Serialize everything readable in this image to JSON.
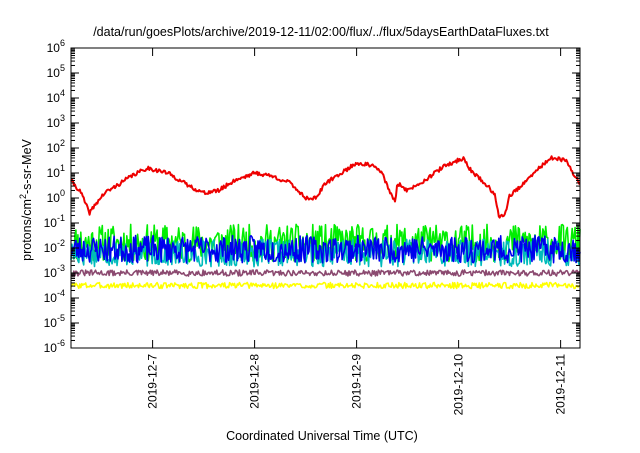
{
  "chart_data": {
    "type": "line",
    "title": "/data/run/goesPlots/archive/2019-12-11/02:00/flux/../flux/5daysEarthDataFluxes.txt",
    "xlabel": "Coordinated Universal Time (UTC)",
    "ylabel": {
      "pre": "protons/cm",
      "sup": "2",
      "post": "-s-sr-MeV"
    },
    "xticks": [
      {
        "label": "2019-12-7",
        "t": 0.8
      },
      {
        "label": "2019-12-8",
        "t": 1.8
      },
      {
        "label": "2019-12-9",
        "t": 2.8
      },
      {
        "label": "2019-12-10",
        "t": 3.8
      },
      {
        "label": "2019-12-11",
        "t": 4.8
      }
    ],
    "yticks": [
      {
        "base": "10",
        "exp": "-6",
        "v": -6
      },
      {
        "base": "10",
        "exp": "-5",
        "v": -5
      },
      {
        "base": "10",
        "exp": "-4",
        "v": -4
      },
      {
        "base": "10",
        "exp": "-3",
        "v": -3
      },
      {
        "base": "10",
        "exp": "-2",
        "v": -2
      },
      {
        "base": "10",
        "exp": "-1",
        "v": -1
      },
      {
        "base": "10",
        "exp": "0",
        "v": 0
      },
      {
        "base": "10",
        "exp": "1",
        "v": 1
      },
      {
        "base": "10",
        "exp": "2",
        "v": 2
      },
      {
        "base": "10",
        "exp": "3",
        "v": 3
      },
      {
        "base": "10",
        "exp": "4",
        "v": 4
      },
      {
        "base": "10",
        "exp": "5",
        "v": 5
      },
      {
        "base": "10",
        "exp": "6",
        "v": 6
      }
    ],
    "xlim": [
      0,
      4.99
    ],
    "ylim_log10": [
      -6,
      6
    ],
    "y_scale": "log",
    "grid": false,
    "legend": "none",
    "series": [
      {
        "color": "#ffff00",
        "log10_points": [
          [
            0,
            -3.5
          ],
          [
            0.5,
            -3.5
          ],
          [
            1,
            -3.5
          ],
          [
            1.5,
            -3.5
          ],
          [
            2,
            -3.5
          ],
          [
            2.5,
            -3.5
          ],
          [
            3,
            -3.5
          ],
          [
            3.5,
            -3.5
          ],
          [
            4,
            -3.5
          ],
          [
            4.5,
            -3.5
          ],
          [
            4.99,
            -3.5
          ]
        ],
        "noise": {
          "amp": 0.12,
          "up_only": false,
          "seed": 3
        }
      },
      {
        "color": "#00ee00",
        "log10_points": [
          [
            0,
            -1.8
          ],
          [
            0.5,
            -1.8
          ],
          [
            1,
            -1.8
          ],
          [
            1.5,
            -1.8
          ],
          [
            2,
            -1.8
          ],
          [
            2.5,
            -1.8
          ],
          [
            3,
            -1.8
          ],
          [
            3.5,
            -1.8
          ],
          [
            4,
            -1.8
          ],
          [
            4.5,
            -1.8
          ],
          [
            4.99,
            -1.8
          ]
        ],
        "noise": {
          "amp": 0.75,
          "up_only": false,
          "seed": 11
        }
      },
      {
        "color": "#00bbbb",
        "log10_points": [
          [
            0,
            -2.2
          ],
          [
            0.5,
            -2.2
          ],
          [
            1,
            -2.2
          ],
          [
            1.5,
            -2.2
          ],
          [
            2,
            -2.2
          ],
          [
            2.5,
            -2.2
          ],
          [
            3,
            -2.2
          ],
          [
            3.5,
            -2.2
          ],
          [
            4,
            -2.2
          ],
          [
            4.5,
            -2.2
          ],
          [
            4.99,
            -2.2
          ]
        ],
        "noise": {
          "amp": 0.55,
          "up_only": false,
          "seed": 17
        }
      },
      {
        "color": "#0000ee",
        "log10_points": [
          [
            0,
            -2.05
          ],
          [
            0.5,
            -2.05
          ],
          [
            1,
            -2.05
          ],
          [
            1.5,
            -2.05
          ],
          [
            2,
            -2.05
          ],
          [
            2.5,
            -2.05
          ],
          [
            3,
            -2.05
          ],
          [
            3.5,
            -2.05
          ],
          [
            4,
            -2.05
          ],
          [
            4.5,
            -2.05
          ],
          [
            4.99,
            -2.05
          ]
        ],
        "noise": {
          "amp": 0.55,
          "up_only": false,
          "seed": 23
        }
      },
      {
        "color": "#8b4a70",
        "log10_points": [
          [
            0,
            -3.0
          ],
          [
            0.5,
            -3.0
          ],
          [
            1,
            -3.0
          ],
          [
            1.5,
            -3.0
          ],
          [
            2,
            -3.0
          ],
          [
            2.5,
            -3.0
          ],
          [
            3,
            -3.0
          ],
          [
            3.5,
            -3.0
          ],
          [
            4,
            -3.0
          ],
          [
            4.5,
            -3.0
          ],
          [
            4.99,
            -3.0
          ]
        ],
        "noise": {
          "amp": 0.12,
          "up_only": false,
          "seed": 31
        }
      },
      {
        "color": "#ee0000",
        "log10_points": [
          [
            0,
            0.7
          ],
          [
            0.1,
            0.2
          ],
          [
            0.18,
            -0.6
          ],
          [
            0.25,
            -0.2
          ],
          [
            0.33,
            0.2
          ],
          [
            0.45,
            0.5
          ],
          [
            0.6,
            0.9
          ],
          [
            0.75,
            1.2
          ],
          [
            0.95,
            1.0
          ],
          [
            1.15,
            0.5
          ],
          [
            1.3,
            0.2
          ],
          [
            1.45,
            0.3
          ],
          [
            1.6,
            0.7
          ],
          [
            1.8,
            1.0
          ],
          [
            1.95,
            0.9
          ],
          [
            2.15,
            0.6
          ],
          [
            2.3,
            0.0
          ],
          [
            2.4,
            0.0
          ],
          [
            2.5,
            0.6
          ],
          [
            2.65,
            1.0
          ],
          [
            2.8,
            1.4
          ],
          [
            2.95,
            1.3
          ],
          [
            3.05,
            1.0
          ],
          [
            3.12,
            0.3
          ],
          [
            3.18,
            -0.2
          ],
          [
            3.2,
            0.6
          ],
          [
            3.3,
            0.3
          ],
          [
            3.5,
            0.8
          ],
          [
            3.65,
            1.25
          ],
          [
            3.85,
            1.6
          ],
          [
            3.9,
            1.2
          ],
          [
            4.05,
            0.6
          ],
          [
            4.15,
            0.2
          ],
          [
            4.2,
            -0.8
          ],
          [
            4.26,
            -0.6
          ],
          [
            4.3,
            0.1
          ],
          [
            4.45,
            0.6
          ],
          [
            4.55,
            1.05
          ],
          [
            4.7,
            1.6
          ],
          [
            4.85,
            1.5
          ],
          [
            4.95,
            0.8
          ],
          [
            4.99,
            0.6
          ]
        ],
        "noise": {
          "amp": 0.08,
          "up_only": false,
          "seed": 41
        }
      }
    ]
  }
}
